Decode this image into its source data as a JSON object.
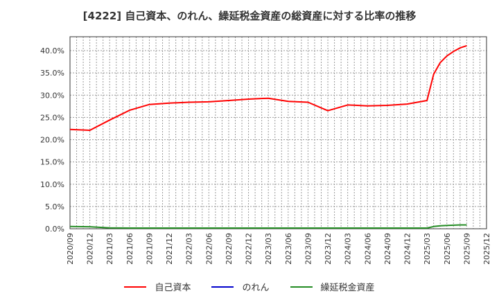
{
  "title": "[4222]  自己資本、のれん、繰延税金資産の総資産に対する比率の推移",
  "legend": [
    {
      "label": "自己資本",
      "color": "#ff0000"
    },
    {
      "label": "のれん",
      "color": "#0000cc"
    },
    {
      "label": "繰延税金資産",
      "color": "#228b22"
    }
  ],
  "chart_data": {
    "type": "line",
    "title": "[4222]  自己資本、のれん、繰延税金資産の総資産に対する比率の推移",
    "xlabel": "",
    "ylabel": "",
    "ylim": [
      0,
      42.5
    ],
    "y_ticks": [
      "0.0%",
      "5.0%",
      "10.0%",
      "15.0%",
      "20.0%",
      "25.0%",
      "30.0%",
      "35.0%",
      "40.0%"
    ],
    "x_ticks": [
      "2020/09",
      "2020/12",
      "2021/03",
      "2021/06",
      "2021/09",
      "2021/12",
      "2022/03",
      "2022/06",
      "2022/09",
      "2022/12",
      "2023/03",
      "2023/06",
      "2023/09",
      "2023/12",
      "2024/03",
      "2024/06",
      "2024/09",
      "2024/12",
      "2025/03",
      "2025/06",
      "2025/09",
      "2025/12"
    ],
    "grid": true,
    "legend_position": "bottom",
    "series": [
      {
        "name": "自己資本",
        "color": "#ff0000",
        "x": [
          "2020/09",
          "2020/12",
          "2021/03",
          "2021/06",
          "2021/09",
          "2021/12",
          "2022/03",
          "2022/06",
          "2022/09",
          "2022/12",
          "2023/03",
          "2023/06",
          "2023/09",
          "2023/12",
          "2024/03",
          "2024/06",
          "2024/09",
          "2024/12",
          "2025/03",
          "2025/04",
          "2025/05",
          "2025/06",
          "2025/07",
          "2025/08",
          "2025/09"
        ],
        "values": [
          22.3,
          22.1,
          24.4,
          26.6,
          27.9,
          28.2,
          28.4,
          28.5,
          28.8,
          29.1,
          29.3,
          28.6,
          28.4,
          26.5,
          27.8,
          27.6,
          27.7,
          28.0,
          28.8,
          34.7,
          37.3,
          38.8,
          39.8,
          40.6,
          41.1
        ]
      },
      {
        "name": "のれん",
        "color": "#0000cc",
        "x": [],
        "values": []
      },
      {
        "name": "繰延税金資産",
        "color": "#228b22",
        "x": [
          "2020/09",
          "2020/12",
          "2021/03",
          "2021/06",
          "2021/09",
          "2021/12",
          "2022/03",
          "2022/06",
          "2022/09",
          "2022/12",
          "2023/03",
          "2023/06",
          "2023/09",
          "2023/12",
          "2024/03",
          "2024/06",
          "2024/09",
          "2024/12",
          "2025/03",
          "2025/04",
          "2025/05",
          "2025/06",
          "2025/07",
          "2025/08",
          "2025/09"
        ],
        "values": [
          0.5,
          0.45,
          0.2,
          0.15,
          0.15,
          0.15,
          0.15,
          0.15,
          0.15,
          0.15,
          0.15,
          0.15,
          0.15,
          0.15,
          0.15,
          0.15,
          0.15,
          0.15,
          0.15,
          0.5,
          0.65,
          0.75,
          0.8,
          0.85,
          0.85
        ]
      }
    ]
  }
}
